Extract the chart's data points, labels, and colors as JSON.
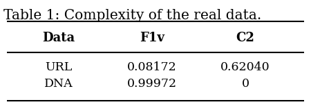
{
  "caption": "Table 1: Complexity of the real data.",
  "col_headers": [
    "Data",
    "F1v",
    "C2"
  ],
  "rows": [
    [
      "URL",
      "0.08172",
      "0.62040"
    ],
    [
      "DNA",
      "0.99972",
      "0"
    ]
  ],
  "bg_color": "#ffffff",
  "text_color": "#000000",
  "caption_fontsize": 14.5,
  "header_fontsize": 13,
  "cell_fontsize": 12.5
}
